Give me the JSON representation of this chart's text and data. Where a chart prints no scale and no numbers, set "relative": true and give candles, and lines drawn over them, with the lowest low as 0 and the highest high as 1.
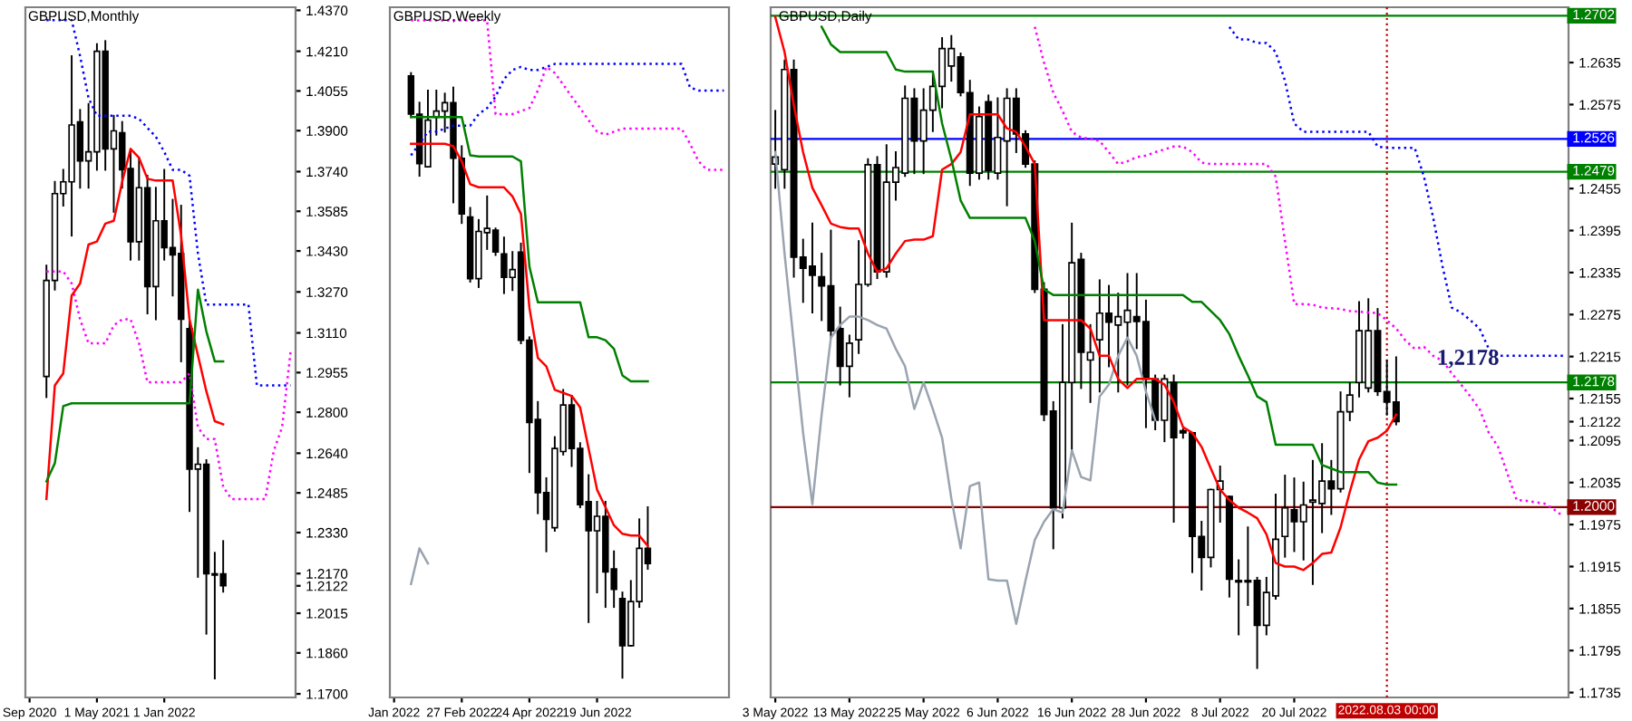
{
  "chart_data": [
    {
      "type": "candlestick",
      "title": "GBPUSD,Monthly",
      "categories": [
        "Sep 2020",
        null,
        null,
        null,
        null,
        null,
        null,
        null,
        "1 May 2021",
        null,
        null,
        null,
        null,
        null,
        null,
        null,
        "1 Jan 2022",
        null,
        null,
        null,
        null,
        null,
        null,
        null,
        null,
        null,
        null,
        null,
        null,
        null,
        null,
        null
      ],
      "ohlc": [
        null,
        null,
        [
          1.294,
          1.3373,
          1.2859,
          1.3315
        ],
        [
          1.3315,
          1.37,
          1.3279,
          1.3654
        ],
        [
          1.3654,
          1.3747,
          1.3607,
          1.37
        ],
        [
          1.37,
          1.4191,
          1.349,
          1.3922
        ],
        [
          1.3934,
          1.3981,
          1.3677,
          1.3782
        ],
        [
          1.3782,
          1.4004,
          1.3677,
          1.3817
        ],
        [
          1.3817,
          1.4238,
          1.3747,
          1.421
        ],
        [
          1.421,
          1.425,
          1.3747,
          1.3829
        ],
        [
          1.3829,
          1.3958,
          1.3583,
          1.3899
        ],
        [
          1.3892,
          1.3934,
          1.3677,
          1.3747
        ],
        [
          1.3752,
          1.3817,
          1.3396,
          1.3466
        ],
        [
          1.3466,
          1.3794,
          1.3396,
          1.3677
        ],
        [
          1.3677,
          1.3724,
          1.3186,
          1.3291
        ],
        [
          1.3291,
          1.3677,
          1.3163,
          1.3548
        ],
        [
          1.3548,
          1.3747,
          1.3396,
          1.3443
        ],
        [
          1.3443,
          1.363,
          1.3256,
          1.3415
        ],
        [
          1.342,
          1.3607,
          1.2999,
          1.3163
        ],
        [
          1.3127,
          1.3163,
          1.2414,
          1.2578
        ],
        [
          1.2578,
          1.266,
          1.2157,
          1.2597
        ],
        [
          1.2597,
          1.2613,
          1.1935,
          1.2169
        ],
        [
          1.2169,
          1.2251,
          1.176,
          1.2164
        ],
        [
          1.2169,
          1.2297,
          1.2099,
          1.2122
        ],
        null,
        null,
        null,
        null,
        null,
        null,
        null,
        null
      ],
      "series": [
        {
          "type": "line",
          "color": "#0000ff",
          "line_style": "dotted",
          "values": [
            null,
            null,
            1.4332,
            1.4332,
            1.4332,
            1.4332,
            1.4191,
            1.4028,
            1.3958,
            1.3958,
            1.3958,
            1.3958,
            1.3958,
            1.3946,
            1.3911,
            1.3876,
            1.3817,
            1.3747,
            1.3747,
            1.3724,
            1.342,
            1.3221,
            1.3221,
            1.3221,
            1.3221,
            1.3221,
            1.3221,
            1.2905,
            1.2905,
            1.2905,
            1.2905,
            1.2905
          ]
        },
        {
          "type": "line",
          "color": "#ff00ff",
          "line_style": "dotted",
          "values": [
            null,
            null,
            1.335,
            1.335,
            1.335,
            1.3303,
            1.3163,
            1.3069,
            1.3069,
            1.3069,
            1.3139,
            1.3163,
            1.3163,
            1.3069,
            1.2917,
            1.2917,
            1.2917,
            1.2917,
            1.2917,
            1.2952,
            1.2742,
            1.2695,
            1.2695,
            1.2508,
            1.2461,
            1.2461,
            1.2461,
            1.2461,
            1.2461,
            1.2648,
            1.2742,
            1.3034
          ]
        },
        {
          "type": "line",
          "color": "#ff0000",
          "line_style": "solid",
          "values": [
            null,
            null,
            1.2461,
            1.2905,
            1.2952,
            1.3256,
            1.3303,
            1.3455,
            1.3467,
            1.3537,
            1.3548,
            1.37,
            1.3829,
            1.3794,
            1.3712,
            1.3705,
            1.3705,
            1.3705,
            1.349,
            1.3163,
            1.3022,
            1.2882,
            1.2765,
            1.2753,
            null,
            null,
            null,
            null,
            null,
            null,
            null,
            null
          ]
        },
        {
          "type": "line",
          "color": "#008000",
          "line_style": "solid",
          "values": [
            null,
            null,
            1.253,
            1.2601,
            1.2824,
            1.2835,
            1.2835,
            1.2835,
            1.2835,
            1.2835,
            1.2835,
            1.2835,
            1.2835,
            1.2835,
            1.2835,
            1.2835,
            1.2835,
            1.2835,
            1.2835,
            1.2835,
            1.3279,
            1.3116,
            1.2999,
            1.2999,
            null,
            null,
            null,
            null,
            null,
            null,
            null,
            null
          ]
        }
      ],
      "ylim": [
        1.1686,
        1.4382
      ],
      "yticks": [
        {
          "value": 1.17,
          "label": "1.1700"
        },
        {
          "value": 1.186,
          "label": "1.1860"
        },
        1.2015,
        1.2122,
        {
          "value": 1.217,
          "label": "1.2170"
        },
        {
          "value": 1.233,
          "label": "1.2330"
        },
        1.2485,
        {
          "value": 1.264,
          "label": "1.2640"
        },
        {
          "value": 1.28,
          "label": "1.2800"
        },
        1.2955,
        {
          "value": 1.311,
          "label": "1.3110"
        },
        {
          "value": 1.327,
          "label": "1.3270"
        },
        {
          "value": 1.343,
          "label": "1.3430"
        },
        1.3585,
        {
          "value": 1.374,
          "label": "1.3740"
        },
        {
          "value": 1.39,
          "label": "1.3900"
        },
        1.4055,
        {
          "value": 1.421,
          "label": "1.4210"
        },
        {
          "value": 1.437,
          "label": "1.4370"
        }
      ],
      "grid": false
    },
    {
      "type": "candlestick",
      "title": "GBPUSD,Weekly",
      "relative": true,
      "tick_labels": "x",
      "categories": [
        "Jan 2022",
        null,
        null,
        null,
        null,
        null,
        null,
        null,
        "27 Feb 2022",
        null,
        null,
        null,
        null,
        null,
        null,
        null,
        "24 Apr 2022",
        null,
        null,
        null,
        null,
        null,
        null,
        null,
        "19 Jun 2022",
        null,
        null,
        null,
        null,
        null,
        null,
        null,
        null,
        null,
        null,
        null,
        null,
        null,
        null,
        null
      ],
      "ohlc": [
        null,
        null,
        [
          0.995,
          1.0,
          0.927,
          0.932
        ],
        [
          0.932,
          0.951,
          0.83,
          0.85
        ],
        [
          0.845,
          0.971,
          0.845,
          0.922
        ],
        [
          0.927,
          0.971,
          0.898,
          0.937
        ],
        [
          0.937,
          0.966,
          0.903,
          0.951
        ],
        [
          0.951,
          0.976,
          0.786,
          0.859
        ],
        [
          0.859,
          0.879,
          0.752,
          0.767
        ],
        [
          0.762,
          0.777,
          0.655,
          0.66
        ],
        [
          0.66,
          0.757,
          0.646,
          0.738
        ],
        [
          0.736,
          0.796,
          0.709,
          0.743
        ],
        [
          0.74,
          0.743,
          0.699,
          0.704
        ],
        [
          0.701,
          0.728,
          0.636,
          0.662
        ],
        [
          0.662,
          0.704,
          0.641,
          0.675
        ],
        [
          0.704,
          0.718,
          0.553,
          0.558
        ],
        [
          0.558,
          0.563,
          0.34,
          0.422
        ],
        [
          0.427,
          0.456,
          0.272,
          0.306
        ],
        [
          0.306,
          0.33,
          0.209,
          0.262
        ],
        [
          0.248,
          0.398,
          0.243,
          0.379
        ],
        [
          0.374,
          0.476,
          0.369,
          0.451
        ],
        [
          0.451,
          0.466,
          0.35,
          0.379
        ],
        [
          0.379,
          0.388,
          0.282,
          0.286
        ],
        [
          0.291,
          0.335,
          0.092,
          0.243
        ],
        [
          0.243,
          0.291,
          0.141,
          0.267
        ],
        [
          0.267,
          0.291,
          0.117,
          0.175
        ],
        [
          0.18,
          0.209,
          0.117,
          0.146
        ],
        [
          0.131,
          0.141,
          0.0,
          0.053
        ],
        [
          0.053,
          0.16,
          0.053,
          0.126
        ],
        [
          0.126,
          0.262,
          0.117,
          0.214
        ],
        [
          0.214,
          0.282,
          0.18,
          0.189
        ],
        null,
        null,
        null,
        null,
        null,
        null,
        null,
        null,
        null
      ],
      "series": [
        {
          "type": "line",
          "color": "#0000ff",
          "line_style": "dotted",
          "values": [
            null,
            null,
            0.864,
            0.883,
            0.903,
            0.903,
            0.908,
            0.913,
            0.913,
            0.913,
            0.932,
            0.942,
            0.961,
            0.99,
            1.005,
            1.01,
            1.005,
            1.005,
            1.01,
            1.015,
            1.015,
            1.015,
            1.015,
            1.015,
            1.015,
            1.015,
            1.015,
            1.015,
            1.015,
            1.015,
            1.015,
            1.015,
            1.015,
            1.015,
            1.015,
            0.976,
            0.971,
            0.971,
            0.971,
            0.971
          ]
        },
        {
          "type": "line",
          "color": "#ff00ff",
          "line_style": "dotted",
          "values": [
            null,
            null,
            1.087,
            1.087,
            1.087,
            1.087,
            1.087,
            1.087,
            1.087,
            1.087,
            1.087,
            1.087,
            0.932,
            0.932,
            0.932,
            0.937,
            0.942,
            0.971,
            1.01,
            1.0,
            0.981,
            0.961,
            0.942,
            0.922,
            0.903,
            0.898,
            0.903,
            0.908,
            0.908,
            0.908,
            0.908,
            0.908,
            0.908,
            0.908,
            0.908,
            0.883,
            0.854,
            0.84,
            0.84,
            0.84
          ]
        },
        {
          "type": "line",
          "color": "#ff0000",
          "line_style": "solid",
          "values": [
            null,
            null,
            0.883,
            0.883,
            0.883,
            0.883,
            0.883,
            0.879,
            0.854,
            0.816,
            0.811,
            0.811,
            0.811,
            0.811,
            0.796,
            0.767,
            0.612,
            0.529,
            0.515,
            0.476,
            0.471,
            0.466,
            0.447,
            0.379,
            0.311,
            0.282,
            0.252,
            0.238,
            0.235,
            0.235,
            0.218,
            null,
            null,
            null,
            null,
            null,
            null,
            null,
            null,
            null
          ]
        },
        {
          "type": "line",
          "color": "#008000",
          "line_style": "solid",
          "values": [
            null,
            null,
            0.927,
            0.927,
            0.927,
            0.927,
            0.927,
            0.927,
            0.927,
            0.864,
            0.862,
            0.862,
            0.862,
            0.862,
            0.862,
            0.854,
            0.68,
            0.621,
            0.621,
            0.621,
            0.621,
            0.621,
            0.621,
            0.563,
            0.563,
            0.558,
            0.544,
            0.5,
            0.49,
            0.49,
            0.49,
            null,
            null,
            null,
            null,
            null,
            null,
            null,
            null,
            null
          ]
        },
        {
          "type": "line",
          "color": "#9aa4b0",
          "line_style": "solid",
          "values": [
            null,
            null,
            0.155,
            0.214,
            0.189,
            null,
            null,
            null,
            null,
            null,
            null,
            null,
            null,
            null,
            null,
            null,
            null,
            null,
            null,
            null,
            null,
            null,
            null,
            null,
            null,
            null,
            null,
            null,
            null,
            null,
            null,
            null,
            null,
            null,
            null,
            null,
            null,
            null,
            null,
            null
          ]
        }
      ],
      "grid": false
    },
    {
      "type": "candlestick",
      "title": "GBPUSD,Daily",
      "categories": [
        "3 May 2022",
        null,
        null,
        null,
        null,
        null,
        null,
        null,
        "13 May 2022",
        null,
        null,
        null,
        null,
        null,
        null,
        null,
        "25 May 2022",
        null,
        null,
        null,
        null,
        null,
        null,
        null,
        "6 Jun 2022",
        null,
        null,
        null,
        null,
        null,
        null,
        null,
        "16 Jun 2022",
        null,
        null,
        null,
        null,
        null,
        null,
        null,
        "28 Jun 2022",
        null,
        null,
        null,
        null,
        null,
        null,
        null,
        "8 Jul 2022",
        null,
        null,
        null,
        null,
        null,
        null,
        null,
        "20 Jul 2022",
        null,
        null,
        null,
        null,
        null,
        null,
        null,
        null,
        null,
        "2022.08.03 00:00",
        null,
        null,
        null,
        null,
        null,
        null,
        null,
        null,
        null,
        null,
        null,
        null,
        null,
        null,
        null,
        null,
        null,
        null,
        null
      ],
      "ohlc": [
        [
          1.249,
          1.2566,
          1.2456,
          1.25
        ],
        [
          1.2482,
          1.2638,
          1.2456,
          1.2625
        ],
        [
          1.2625,
          1.2638,
          1.2329,
          1.2357
        ],
        [
          1.2357,
          1.2382,
          1.2293,
          1.2341
        ],
        [
          1.2344,
          1.2405,
          1.2278,
          1.2331
        ],
        [
          1.2329,
          1.2362,
          1.2267,
          1.2316
        ],
        [
          1.2316,
          1.2395,
          1.2242,
          1.2252
        ],
        [
          1.2255,
          1.2285,
          1.2175,
          1.2201
        ],
        [
          1.2201,
          1.2245,
          1.2158,
          1.2234
        ],
        [
          1.2239,
          1.238,
          1.222,
          1.2318
        ],
        [
          1.2318,
          1.2497,
          1.2316,
          1.2489
        ],
        [
          1.2489,
          1.25,
          1.2327,
          1.2336
        ],
        [
          1.2336,
          1.2517,
          1.2329,
          1.2464
        ],
        [
          1.2464,
          1.2507,
          1.2439,
          1.2485
        ],
        [
          1.2477,
          1.2601,
          1.2473,
          1.2584
        ],
        [
          1.2584,
          1.2597,
          1.2477,
          1.2523
        ],
        [
          1.2523,
          1.2597,
          1.2477,
          1.2567
        ],
        [
          1.2567,
          1.2622,
          1.2537,
          1.2601
        ],
        [
          1.2601,
          1.267,
          1.2571,
          1.2655
        ],
        [
          1.263,
          1.2673,
          1.2609,
          1.2655
        ],
        [
          1.2643,
          1.2648,
          1.2588,
          1.2592
        ],
        [
          1.2592,
          1.2609,
          1.246,
          1.2477
        ],
        [
          1.2477,
          1.2571,
          1.2469,
          1.2558
        ],
        [
          1.2579,
          1.2588,
          1.2469,
          1.2481
        ],
        [
          1.2477,
          1.2584,
          1.2469,
          1.2528
        ],
        [
          1.2523,
          1.2597,
          1.2431,
          1.2584
        ],
        [
          1.2584,
          1.2597,
          1.2507,
          1.2533
        ],
        [
          1.2533,
          1.2537,
          1.2486,
          1.249
        ],
        [
          1.249,
          1.2494,
          1.2307,
          1.2311
        ],
        [
          1.2311,
          1.232,
          1.2124,
          1.2132
        ],
        [
          1.2137,
          1.215,
          1.1941,
          1.1999
        ],
        [
          1.1999,
          1.226,
          1.1985,
          1.2178
        ],
        [
          1.2178,
          1.2405,
          1.2081,
          1.2349
        ],
        [
          1.2354,
          1.2362,
          1.217,
          1.2221
        ],
        [
          1.221,
          1.226,
          1.215,
          1.2221
        ],
        [
          1.2239,
          1.2324,
          1.2165,
          1.2277
        ],
        [
          1.2277,
          1.2316,
          1.2201,
          1.2264
        ],
        [
          1.226,
          1.2305,
          1.2165,
          1.2272
        ],
        [
          1.2264,
          1.2333,
          1.2175,
          1.2281
        ],
        [
          1.2272,
          1.2333,
          1.2227,
          1.2265
        ],
        [
          1.2265,
          1.2295,
          1.2114,
          1.2183
        ],
        [
          1.2183,
          1.2188,
          1.2111,
          1.2124
        ],
        [
          1.2124,
          1.2188,
          1.2094,
          1.2183
        ],
        [
          1.2178,
          1.2188,
          1.1979,
          1.2099
        ],
        [
          1.2109,
          1.2111,
          1.2099,
          1.2106
        ],
        [
          1.2106,
          1.2106,
          1.1907,
          1.1958
        ],
        [
          1.1958,
          1.1979,
          1.1882,
          1.1928
        ],
        [
          1.1928,
          1.2025,
          1.1915,
          1.2025
        ],
        [
          1.2025,
          1.2058,
          1.1979,
          1.2037
        ],
        [
          1.2015,
          1.2015,
          1.1872,
          1.1897
        ],
        [
          1.1895,
          1.1924,
          1.1818,
          1.1893
        ],
        [
          1.1895,
          1.1971,
          1.186,
          1.1893
        ],
        [
          1.1895,
          1.1899,
          1.177,
          1.1831
        ],
        [
          1.1831,
          1.1899,
          1.1818,
          1.1878
        ],
        [
          1.1873,
          1.2018,
          1.1869,
          1.1954
        ],
        [
          1.1958,
          1.2045,
          1.1929,
          1.1999
        ],
        [
          1.1996,
          1.2041,
          1.1937,
          1.1979
        ],
        [
          1.1979,
          1.2035,
          1.1925,
          1.2003
        ],
        [
          1.2007,
          1.2066,
          1.189,
          1.201
        ],
        [
          1.2005,
          1.209,
          1.1964,
          1.2037
        ],
        [
          1.2037,
          1.2066,
          1.199,
          1.2026
        ],
        [
          1.2026,
          1.2164,
          1.2022,
          1.2136
        ],
        [
          1.2136,
          1.2177,
          1.2124,
          1.216
        ],
        [
          1.2178,
          1.2293,
          1.2158,
          1.2252
        ],
        [
          1.217,
          1.2297,
          1.2165,
          1.2252
        ],
        [
          1.2252,
          1.2283,
          1.216,
          1.2165
        ],
        [
          1.2165,
          1.2209,
          1.2132,
          1.215
        ],
        [
          1.215,
          1.2214,
          1.2118,
          1.2122
        ],
        null,
        null,
        null,
        null,
        null,
        null,
        null,
        null,
        null,
        null,
        null,
        null,
        null,
        null,
        null,
        null,
        null,
        null
      ],
      "series": [
        {
          "type": "line",
          "color": "#0000ff",
          "line_style": "dotted",
          "values": [
            null,
            null,
            null,
            null,
            null,
            null,
            null,
            null,
            null,
            null,
            null,
            null,
            null,
            null,
            null,
            null,
            null,
            null,
            null,
            null,
            null,
            null,
            null,
            null,
            null,
            null,
            null,
            null,
            null,
            null,
            null,
            null,
            null,
            null,
            null,
            null,
            null,
            null,
            null,
            null,
            null,
            null,
            null,
            null,
            null,
            null,
            null,
            null,
            null,
            1.2686,
            1.2668,
            1.2668,
            1.2663,
            1.2663,
            1.265,
            1.2609,
            1.2548,
            1.2536,
            1.2536,
            1.2536,
            1.2536,
            1.2536,
            1.2536,
            1.2536,
            1.2536,
            1.2515,
            1.2513,
            1.2513,
            1.2513,
            1.2513,
            1.2472,
            1.2413,
            1.2344,
            1.2285,
            1.2278,
            1.2267,
            1.2255,
            1.2226,
            1.2216,
            1.2216,
            1.2216,
            1.2216,
            1.2216,
            1.2216,
            1.2216,
            1.2216
          ]
        },
        {
          "type": "line",
          "color": "#ff00ff",
          "line_style": "dotted",
          "values": [
            null,
            null,
            null,
            null,
            null,
            null,
            null,
            null,
            null,
            null,
            null,
            null,
            null,
            null,
            null,
            null,
            null,
            null,
            null,
            null,
            null,
            null,
            null,
            null,
            null,
            null,
            null,
            null,
            1.2686,
            1.2635,
            1.2592,
            1.2566,
            1.2536,
            1.2528,
            1.2526,
            1.2523,
            1.2507,
            1.249,
            1.2494,
            1.25,
            1.2502,
            1.2507,
            1.2511,
            1.2515,
            1.2515,
            1.2507,
            1.2492,
            1.249,
            1.249,
            1.249,
            1.249,
            1.249,
            1.249,
            1.249,
            1.2472,
            1.238,
            1.229,
            1.229,
            1.2289,
            1.2285,
            1.2284,
            1.2283,
            1.228,
            1.2279,
            1.2278,
            1.2277,
            1.2267,
            1.2255,
            1.2238,
            1.2226,
            1.2229,
            1.2216,
            1.2209,
            1.2191,
            1.2175,
            1.2158,
            1.214,
            1.2106,
            1.2086,
            1.2048,
            1.201,
            1.2009,
            1.2007,
            1.2005,
            1.1997,
            1.1987
          ]
        },
        {
          "type": "line",
          "color": "#9aa4b0",
          "line_style": "solid",
          "values": [
            1.2507,
            1.2362,
            1.2234,
            1.2106,
            1.2004,
            1.2132,
            1.2242,
            1.226,
            1.2272,
            1.2272,
            1.2267,
            1.226,
            1.2255,
            1.2226,
            1.2201,
            1.214,
            1.2178,
            1.214,
            1.2099,
            1.2012,
            1.1941,
            1.203,
            1.2035,
            1.1897,
            1.1895,
            1.1895,
            1.1833,
            1.1895,
            1.1953,
            1.1979,
            1.1997,
            1.1992,
            1.2081,
            1.2043,
            1.2038,
            1.2158,
            1.2175,
            1.2216,
            1.2242,
            1.2216,
            1.2165,
            1.2124,
            null,
            null,
            null,
            null,
            null,
            null,
            null,
            null,
            null,
            null,
            null,
            null,
            null,
            null,
            null,
            null,
            null,
            null,
            null,
            null,
            null,
            null,
            null,
            null,
            null,
            null,
            null,
            null,
            null,
            null,
            null,
            null,
            null,
            null,
            null,
            null,
            null,
            null,
            null,
            null,
            null,
            null,
            null,
            null
          ]
        },
        {
          "type": "line",
          "color": "#ff0000",
          "line_style": "solid",
          "values": [
            1.27,
            1.265,
            1.2574,
            1.2507,
            1.2456,
            1.2431,
            1.2405,
            1.24,
            1.2398,
            1.2398,
            1.2362,
            1.2336,
            1.2341,
            1.2362,
            1.238,
            1.2382,
            1.2382,
            1.2387,
            1.2482,
            1.249,
            1.2507,
            1.2561,
            1.2561,
            1.2561,
            1.2561,
            1.2541,
            1.2536,
            1.2515,
            1.249,
            1.2267,
            1.2267,
            1.2267,
            1.2267,
            1.2267,
            1.2255,
            1.2216,
            1.2216,
            1.2183,
            1.217,
            1.2183,
            1.2183,
            1.2183,
            1.2175,
            1.215,
            1.2114,
            1.2106,
            1.2086,
            1.2055,
            1.2025,
            1.201,
            1.1999,
            1.1992,
            1.1984,
            1.1961,
            1.192,
            1.1915,
            1.1915,
            1.191,
            1.192,
            1.1933,
            1.1935,
            1.1971,
            1.2022,
            1.2068,
            1.2094,
            1.2099,
            1.2109,
            1.2132,
            null,
            null,
            null,
            null,
            null,
            null,
            null,
            null,
            null,
            null,
            null,
            null,
            null,
            null,
            null,
            null,
            null,
            null
          ]
        },
        {
          "type": "line",
          "color": "#008000",
          "line_style": "solid",
          "values": [
            null,
            null,
            null,
            null,
            null,
            1.2686,
            1.2661,
            1.265,
            1.265,
            1.265,
            1.265,
            1.265,
            1.265,
            1.2625,
            1.2622,
            1.2622,
            1.2622,
            1.2622,
            1.2548,
            1.2497,
            1.2438,
            1.2413,
            1.2413,
            1.2413,
            1.2413,
            1.2413,
            1.2413,
            1.2413,
            1.238,
            1.2311,
            1.2303,
            1.2303,
            1.2303,
            1.2303,
            1.2303,
            1.2303,
            1.2303,
            1.2303,
            1.2303,
            1.2303,
            1.2303,
            1.2303,
            1.2303,
            1.2303,
            1.2303,
            1.2293,
            1.2293,
            1.228,
            1.2267,
            1.2247,
            1.2216,
            1.2188,
            1.2158,
            1.215,
            1.2089,
            1.2089,
            1.2089,
            1.2089,
            1.2089,
            1.206,
            1.2055,
            1.205,
            1.205,
            1.205,
            1.205,
            1.2035,
            1.2032,
            1.2032,
            null,
            null,
            null,
            null,
            null,
            null,
            null,
            null,
            null,
            null,
            null,
            null,
            null,
            null,
            null,
            null,
            null,
            null
          ]
        }
      ],
      "ylim": [
        1.1728,
        1.2714
      ],
      "yticks": [
        1.1735,
        1.1795,
        1.1855,
        1.1915,
        1.1975,
        1.2035,
        1.2095,
        1.2122,
        1.2155,
        1.2215,
        1.2275,
        1.2335,
        1.2395,
        1.2455,
        1.2575,
        1.2635
      ],
      "ref_lines": [
        {
          "axis": "y",
          "value": 1.2702,
          "label": "1.2702",
          "color": "#008000",
          "line_style": "solid"
        },
        {
          "axis": "y",
          "value": 1.2526,
          "label": "1.2526",
          "color": "#0000ff",
          "line_style": "solid"
        },
        {
          "axis": "y",
          "value": 1.2479,
          "label": "1.2479",
          "color": "#008000",
          "line_style": "solid"
        },
        {
          "axis": "y",
          "value": 1.2178,
          "label": "1.2178",
          "color": "#008000",
          "line_style": "solid"
        },
        {
          "axis": "y",
          "value": 1.2,
          "label": "1.2000",
          "color": "#8b0000",
          "line_style": "solid"
        },
        {
          "axis": "x",
          "value": "2022.08.03 00:00",
          "color": "#c00000",
          "line_style": "dotted"
        }
      ],
      "annotations": [
        "1,2178"
      ],
      "grid": false
    }
  ]
}
